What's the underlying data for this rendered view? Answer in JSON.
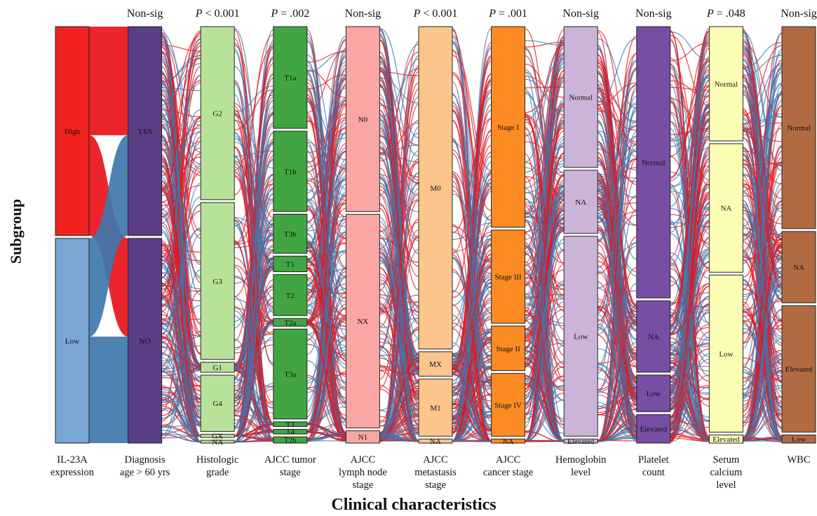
{
  "chart_data": {
    "type": "alluvial",
    "ylabel": "Subgroup",
    "xlabel": "Clinical characteristics",
    "flow_colors": {
      "High": "#e8141a",
      "Low": "#3f77ad"
    },
    "axes": [
      {
        "label": [
          "IL-23A",
          "expression"
        ],
        "pvalue": "",
        "segments": [
          {
            "name": "High",
            "share": 0.505,
            "color": "#f2231f"
          },
          {
            "name": "Low",
            "share": 0.495,
            "color": "#79a6d3"
          }
        ]
      },
      {
        "label": [
          "Diagnosis",
          "age > 60 yrs"
        ],
        "pvalue": "Non-sig",
        "segments": [
          {
            "name": "YES",
            "share": 0.505,
            "color": "#5b3e86"
          },
          {
            "name": "NO",
            "share": 0.495,
            "color": "#5b3e86"
          }
        ]
      },
      {
        "label": [
          "Histologic",
          "grade"
        ],
        "pvalue": "P < 0.001",
        "segments": [
          {
            "name": "G2",
            "share": 0.43,
            "color": "#b8e29a"
          },
          {
            "name": "G3",
            "share": 0.39,
            "color": "#b8e29a"
          },
          {
            "name": "G1",
            "share": 0.025,
            "color": "#b8e29a"
          },
          {
            "name": "G4",
            "share": 0.14,
            "color": "#b8e29a"
          },
          {
            "name": "GX",
            "share": 0.008,
            "color": "#b8e29a"
          },
          {
            "name": "NA",
            "share": 0.007,
            "color": "#b8e29a"
          }
        ]
      },
      {
        "label": [
          "AJCC tumor",
          "stage"
        ],
        "pvalue": "P = .002",
        "segments": [
          {
            "name": "T1a",
            "share": 0.26,
            "color": "#41a543"
          },
          {
            "name": "T1b",
            "share": 0.205,
            "color": "#41a543"
          },
          {
            "name": "T3b",
            "share": 0.1,
            "color": "#41a543"
          },
          {
            "name": "T1",
            "share": 0.04,
            "color": "#41a543"
          },
          {
            "name": "T2",
            "share": 0.105,
            "color": "#41a543"
          },
          {
            "name": "T2a",
            "share": 0.02,
            "color": "#41a543"
          },
          {
            "name": "T3a",
            "share": 0.23,
            "color": "#41a543"
          },
          {
            "name": "T3",
            "share": 0.012,
            "color": "#41a543"
          },
          {
            "name": "T4",
            "share": 0.012,
            "color": "#41a543"
          },
          {
            "name": "T2b",
            "share": 0.016,
            "color": "#41a543"
          }
        ]
      },
      {
        "label": [
          "AJCC",
          "lymph node",
          "stage"
        ],
        "pvalue": "Non-sig",
        "segments": [
          {
            "name": "N0",
            "share": 0.45,
            "color": "#f9a6a4"
          },
          {
            "name": "NX",
            "share": 0.52,
            "color": "#f9a6a4"
          },
          {
            "name": "N1",
            "share": 0.03,
            "color": "#f9a6a4"
          }
        ]
      },
      {
        "label": [
          "AJCC",
          "metastasis",
          "stage"
        ],
        "pvalue": "P < 0.001",
        "segments": [
          {
            "name": "M0",
            "share": 0.79,
            "color": "#fbc58c"
          },
          {
            "name": "MX",
            "share": 0.06,
            "color": "#fbc58c"
          },
          {
            "name": "M1",
            "share": 0.14,
            "color": "#fbc58c"
          },
          {
            "name": "NA",
            "share": 0.01,
            "color": "#fbc58c"
          }
        ]
      },
      {
        "label": [
          "AJCC",
          "cancer stage"
        ],
        "pvalue": "P = .001",
        "segments": [
          {
            "name": "Stage I",
            "share": 0.495,
            "color": "#fb8b22"
          },
          {
            "name": "Stage III",
            "share": 0.23,
            "color": "#fb8b22"
          },
          {
            "name": "Stage II",
            "share": 0.11,
            "color": "#fb8b22"
          },
          {
            "name": "Stage IV",
            "share": 0.155,
            "color": "#fb8b22"
          },
          {
            "name": "NA",
            "share": 0.01,
            "color": "#fb8b22"
          }
        ]
      },
      {
        "label": [
          "Hemoglobin",
          "level"
        ],
        "pvalue": "Non-sig",
        "segments": [
          {
            "name": "Normal",
            "share": 0.345,
            "color": "#cbb4d8"
          },
          {
            "name": "NA",
            "share": 0.155,
            "color": "#cbb4d8"
          },
          {
            "name": "Low",
            "share": 0.49,
            "color": "#cbb4d8"
          },
          {
            "name": "Elevated",
            "share": 0.01,
            "color": "#cbb4d8"
          }
        ]
      },
      {
        "label": [
          "Platelet",
          "count"
        ],
        "pvalue": "Non-sig",
        "segments": [
          {
            "name": "Normal",
            "share": 0.665,
            "color": "#774ea3"
          },
          {
            "name": "NA",
            "share": 0.175,
            "color": "#774ea3"
          },
          {
            "name": "Low",
            "share": 0.09,
            "color": "#774ea3"
          },
          {
            "name": "Elevated",
            "share": 0.07,
            "color": "#774ea3"
          }
        ]
      },
      {
        "label": [
          "Serum",
          "calcium",
          "level"
        ],
        "pvalue": "P = .048",
        "segments": [
          {
            "name": "Normal",
            "share": 0.28,
            "color": "#fbfdb5"
          },
          {
            "name": "NA",
            "share": 0.315,
            "color": "#fbfdb5"
          },
          {
            "name": "Low",
            "share": 0.385,
            "color": "#fbfdb5"
          },
          {
            "name": "Elevated",
            "share": 0.02,
            "color": "#fbfdb5"
          }
        ]
      },
      {
        "label": [
          "WBC"
        ],
        "pvalue": "Non-sig",
        "segments": [
          {
            "name": "Normal",
            "share": 0.495,
            "color": "#b26a42"
          },
          {
            "name": "NA",
            "share": 0.175,
            "color": "#b26a42"
          },
          {
            "name": "Elevated",
            "share": 0.31,
            "color": "#b26a42"
          },
          {
            "name": "Low",
            "share": 0.02,
            "color": "#b26a42"
          }
        ]
      }
    ]
  }
}
